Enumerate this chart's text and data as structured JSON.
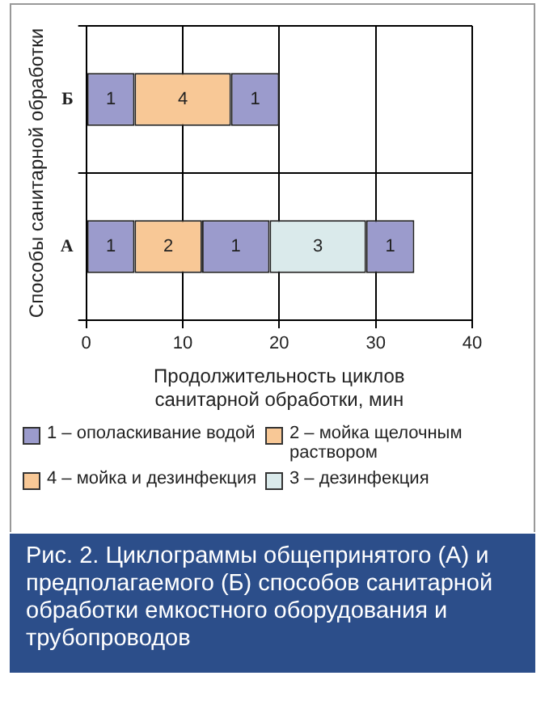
{
  "chart_data": {
    "type": "bar",
    "orientation": "horizontal",
    "stacked": true,
    "title": "Рис. 2. Циклограммы общепринятого (А) и предполагаемого (Б) способов санитарной обработки емкостного оборудования и трубопроводов",
    "xlabel": "Продолжительность циклов санитарной обработки, мин",
    "ylabel": "Способы санитарной обработки",
    "categories": [
      "Б",
      "А"
    ],
    "series": [
      {
        "name": "1 – ополаскивание водой",
        "color": "#9b9bcc",
        "values": [
          5,
          5
        ]
      },
      {
        "name": "2 – мойка щелочным раствором",
        "color": "#f8c896",
        "values": [
          null,
          7
        ]
      },
      {
        "name": "4 – мойка и дезинфекция",
        "color": "#f8c896",
        "values": [
          10,
          null
        ]
      },
      {
        "color": "#9b9bcc",
        "values": [
          5,
          7
        ]
      },
      {
        "name": "3 – дезинфекция",
        "color": "#daeaeb",
        "values": [
          null,
          10
        ]
      },
      {
        "color": "#9b9bcc",
        "values": [
          null,
          5
        ]
      }
    ],
    "annotations": [
      "1",
      "4",
      "1",
      "1",
      "2",
      "1",
      "3",
      "1"
    ],
    "xlim": [
      0,
      40
    ],
    "xticks": [
      0,
      10,
      20,
      30,
      40
    ],
    "grid": true,
    "legend": "bottom"
  }
}
